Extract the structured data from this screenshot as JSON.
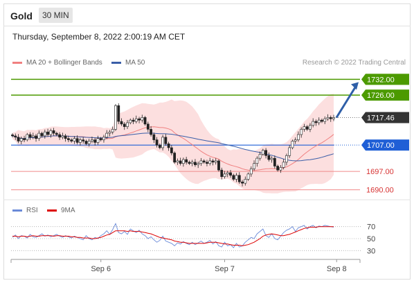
{
  "header": {
    "symbol": "Gold",
    "timeframe": "30 MIN"
  },
  "datetime": "Thursday, September 8, 2022 2:00:19 AM CET",
  "legend": {
    "main": [
      {
        "label": "MA 20 + Bollinger Bands",
        "color": "#f08080"
      },
      {
        "label": "MA 50",
        "color": "#3a5ea8"
      }
    ],
    "rsi": [
      {
        "label": "RSI",
        "color": "#6a8ad8"
      },
      {
        "label": "9MA",
        "color": "#dd0000"
      }
    ]
  },
  "credit": "Research © 2022 Trading Central",
  "chart_data": {
    "type": "candlestick",
    "price_range": [
      1687,
      1735
    ],
    "candles_close_path": [
      1710.5,
      1710.0,
      1708.5,
      1709.5,
      1709.0,
      1711.0,
      1710.0,
      1710.5,
      1709.5,
      1711.5,
      1710.5,
      1712.0,
      1711.0,
      1712.5,
      1711.5,
      1711.0,
      1710.0,
      1710.5,
      1709.5,
      1709.0,
      1708.5,
      1709.5,
      1708.0,
      1709.0,
      1708.5,
      1707.5,
      1708.5,
      1709.0,
      1708.0,
      1709.5,
      1709.0,
      1710.0,
      1711.5,
      1712.0,
      1713.0,
      1722.0,
      1716.0,
      1715.0,
      1714.0,
      1715.5,
      1716.5,
      1716.0,
      1717.0,
      1716.5,
      1717.5,
      1715.0,
      1713.0,
      1711.0,
      1709.0,
      1707.0,
      1706.0,
      1710.0,
      1707.5,
      1706.0,
      1704.0,
      1700.5,
      1701.0,
      1700.0,
      1701.5,
      1700.5,
      1700.0,
      1700.5,
      1699.5,
      1700.0,
      1701.0,
      1700.5,
      1700.0,
      1701.0,
      1700.5,
      1701.0,
      1697.5,
      1695.0,
      1696.0,
      1696.5,
      1695.5,
      1694.0,
      1695.5,
      1693.0,
      1692.5,
      1694.0,
      1696.0,
      1698.0,
      1700.0,
      1702.0,
      1703.5,
      1705.0,
      1703.0,
      1701.5,
      1702.0,
      1699.0,
      1697.5,
      1698.5,
      1700.5,
      1703.0,
      1706.0,
      1708.5,
      1709.0,
      1711.0,
      1713.0,
      1714.0,
      1713.0,
      1714.5,
      1716.0,
      1715.5,
      1716.5,
      1716.0,
      1717.0,
      1717.5,
      1717.0,
      1717.46
    ],
    "ma20_label": "MA 20",
    "ma50_label": "MA 50",
    "levels": [
      {
        "value": 1732.0,
        "label": "1732.00",
        "style": "resistance",
        "color": "#4c9a00"
      },
      {
        "value": 1726.0,
        "label": "1726.00",
        "style": "resistance",
        "color": "#4c9a00"
      },
      {
        "value": 1717.46,
        "label": "1717.46",
        "style": "current",
        "color": "#333333"
      },
      {
        "value": 1707.0,
        "label": "1707.00",
        "style": "pivot",
        "color": "#1f5fd6"
      },
      {
        "value": 1697.0,
        "label": "1697.00",
        "style": "support",
        "color": "#d73333"
      },
      {
        "value": 1690.0,
        "label": "1690.00",
        "style": "support",
        "color": "#d73333"
      }
    ],
    "target_arrow": {
      "from": 1717.46,
      "to": 1732.0,
      "color": "#2f5fa8"
    },
    "x_ticks": [
      {
        "label": "Sep 6",
        "index": 30
      },
      {
        "label": "Sep 7",
        "index": 72
      },
      {
        "label": "Sep 8",
        "index": 110
      }
    ],
    "rsi": {
      "range": [
        20,
        80
      ],
      "ticks": [
        70,
        50,
        30
      ],
      "tick_labels": [
        "70",
        "50",
        "30"
      ],
      "values": [
        52,
        56,
        50,
        55,
        54,
        51,
        57,
        53,
        52,
        55,
        58,
        54,
        56,
        53,
        55,
        57,
        54,
        52,
        55,
        53,
        51,
        54,
        52,
        50,
        48,
        55,
        50,
        48,
        52,
        50,
        55,
        58,
        63,
        57,
        65,
        75,
        60,
        58,
        62,
        57,
        66,
        63,
        60,
        64,
        58,
        55,
        50,
        53,
        48,
        44,
        47,
        54,
        46,
        44,
        42,
        38,
        43,
        41,
        45,
        42,
        40,
        44,
        40,
        43,
        46,
        42,
        44,
        47,
        41,
        45,
        38,
        36,
        44,
        38,
        40,
        35,
        42,
        36,
        38,
        44,
        48,
        52,
        50,
        58,
        62,
        66,
        55,
        52,
        58,
        50,
        48,
        54,
        60,
        64,
        66,
        70,
        62,
        68,
        70,
        72,
        66,
        70,
        72,
        68,
        71,
        70,
        72,
        71,
        70,
        69
      ],
      "ma9": [
        54,
        54,
        53,
        54,
        54,
        53,
        54,
        55,
        54,
        54,
        55,
        55,
        55,
        55,
        54,
        55,
        55,
        54,
        54,
        54,
        53,
        53,
        52,
        52,
        51,
        51,
        51,
        50,
        50,
        51,
        52,
        54,
        56,
        57,
        60,
        63,
        63,
        63,
        63,
        62,
        63,
        62,
        62,
        62,
        61,
        60,
        59,
        58,
        56,
        54,
        52,
        51,
        50,
        49,
        48,
        46,
        45,
        44,
        44,
        43,
        42,
        42,
        42,
        42,
        42,
        42,
        43,
        44,
        44,
        44,
        43,
        42,
        41,
        41,
        40,
        39,
        39,
        39,
        38,
        39,
        40,
        42,
        44,
        47,
        50,
        54,
        56,
        57,
        58,
        57,
        56,
        55,
        55,
        56,
        57,
        59,
        61,
        63,
        65,
        67,
        68,
        69,
        69,
        69,
        70,
        70,
        70,
        70,
        70,
        70
      ]
    }
  }
}
